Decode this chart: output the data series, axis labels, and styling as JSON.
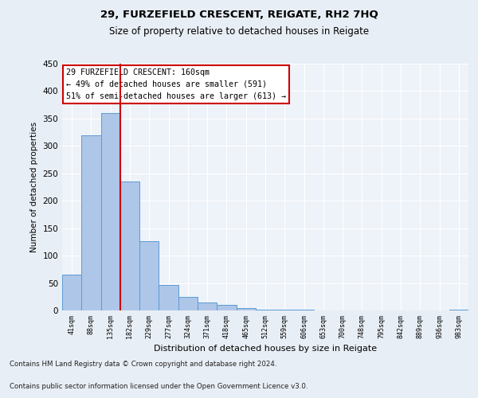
{
  "title1": "29, FURZEFIELD CRESCENT, REIGATE, RH2 7HQ",
  "title2": "Size of property relative to detached houses in Reigate",
  "xlabel": "Distribution of detached houses by size in Reigate",
  "ylabel": "Number of detached properties",
  "categories": [
    "41sqm",
    "88sqm",
    "135sqm",
    "182sqm",
    "229sqm",
    "277sqm",
    "324sqm",
    "371sqm",
    "418sqm",
    "465sqm",
    "512sqm",
    "559sqm",
    "606sqm",
    "653sqm",
    "700sqm",
    "748sqm",
    "795sqm",
    "842sqm",
    "889sqm",
    "936sqm",
    "983sqm"
  ],
  "values": [
    65,
    320,
    360,
    235,
    127,
    46,
    25,
    15,
    10,
    4,
    1,
    1,
    1,
    0,
    0,
    0,
    0,
    0,
    0,
    0,
    2
  ],
  "bar_color": "#aec6e8",
  "bar_edge_color": "#5b9bd5",
  "vline_x": 2.5,
  "vline_color": "#cc0000",
  "annotation_text": "29 FURZEFIELD CRESCENT: 160sqm\n← 49% of detached houses are smaller (591)\n51% of semi-detached houses are larger (613) →",
  "annotation_box_color": "#ffffff",
  "annotation_box_edge": "#cc0000",
  "ylim": [
    0,
    450
  ],
  "yticks": [
    0,
    50,
    100,
    150,
    200,
    250,
    300,
    350,
    400,
    450
  ],
  "footer1": "Contains HM Land Registry data © Crown copyright and database right 2024.",
  "footer2": "Contains public sector information licensed under the Open Government Licence v3.0.",
  "bg_color": "#e8eef5",
  "plot_bg_color": "#eef3f9"
}
